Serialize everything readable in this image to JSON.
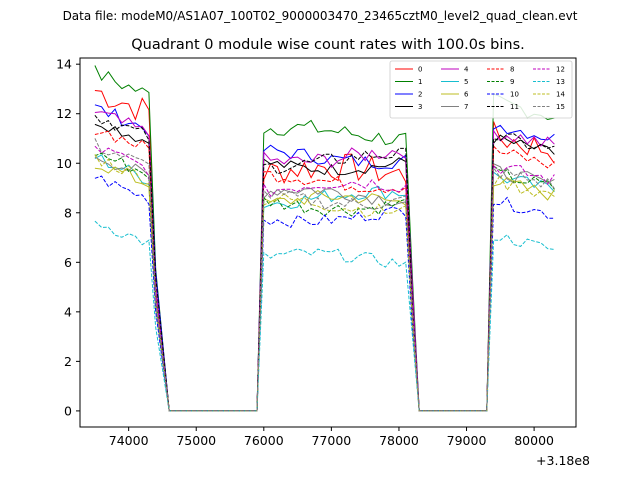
{
  "figure": {
    "suptitle": "Data file: modeM0/AS1A07_100T02_9000003470_23465cztM0_level2_quad_clean.evt"
  },
  "chart_data": {
    "type": "line",
    "title": "Quadrant 0 module wise count rates with 100.0s bins.",
    "xlabel": "",
    "ylabel": "",
    "x_offset_label": "+3.18e8",
    "xlim": [
      73280,
      80620
    ],
    "ylim": [
      -0.65,
      14.25
    ],
    "xticks": [
      74000,
      75000,
      76000,
      77000,
      78000,
      79000,
      80000
    ],
    "yticks": [
      0,
      2,
      4,
      6,
      8,
      10,
      12,
      14
    ],
    "legend_position": "top-right",
    "legend_columns": 4,
    "segments": [
      {
        "x_start": 73500,
        "x_end": 74300
      },
      {
        "x_start": 76000,
        "x_end": 78100
      },
      {
        "x_start": 79400,
        "x_end": 80300
      }
    ],
    "gaps": [
      {
        "x_start": 74600,
        "x_end": 75900,
        "value": 0
      },
      {
        "x_start": 78300,
        "x_end": 79300,
        "value": 0
      }
    ],
    "series": [
      {
        "name": "0",
        "color": "#ff0000",
        "dash": "solid",
        "levels": [
          12.5,
          9.6,
          10.8
        ],
        "noise": 0.6
      },
      {
        "name": "1",
        "color": "#008000",
        "dash": "solid",
        "levels": [
          13.2,
          11.2,
          12.2
        ],
        "noise": 0.35
      },
      {
        "name": "2",
        "color": "#0000ff",
        "dash": "solid",
        "levels": [
          11.8,
          10.3,
          11.3
        ],
        "noise": 0.3
      },
      {
        "name": "3",
        "color": "#000000",
        "dash": "solid",
        "levels": [
          11.3,
          10.0,
          10.7
        ],
        "noise": 0.25
      },
      {
        "name": "4",
        "color": "#bf00bf",
        "dash": "solid",
        "levels": [
          11.6,
          10.3,
          11.0
        ],
        "noise": 0.35
      },
      {
        "name": "5",
        "color": "#17becf",
        "dash": "solid",
        "levels": [
          9.8,
          8.6,
          9.2
        ],
        "noise": 0.3
      },
      {
        "name": "6",
        "color": "#bcbd22",
        "dash": "solid",
        "levels": [
          9.6,
          8.4,
          9.0
        ],
        "noise": 0.3
      },
      {
        "name": "7",
        "color": "#808080",
        "dash": "solid",
        "levels": [
          9.9,
          8.7,
          9.4
        ],
        "noise": 0.3
      },
      {
        "name": "8",
        "color": "#ff0000",
        "dash": "dashed",
        "levels": [
          11.0,
          9.3,
          10.2
        ],
        "noise": 0.3
      },
      {
        "name": "9",
        "color": "#008000",
        "dash": "dashed",
        "levels": [
          10.0,
          8.4,
          9.3
        ],
        "noise": 0.3
      },
      {
        "name": "10",
        "color": "#0000ff",
        "dash": "dashed",
        "levels": [
          9.0,
          7.9,
          8.2
        ],
        "noise": 0.25
      },
      {
        "name": "11",
        "color": "#000000",
        "dash": "dashed",
        "levels": [
          11.5,
          10.1,
          10.8
        ],
        "noise": 0.3
      },
      {
        "name": "12",
        "color": "#bf00bf",
        "dash": "dashed",
        "levels": [
          10.2,
          9.0,
          9.6
        ],
        "noise": 0.3
      },
      {
        "name": "13",
        "color": "#17becf",
        "dash": "dashed",
        "levels": [
          7.2,
          6.1,
          6.8
        ],
        "noise": 0.25
      },
      {
        "name": "14",
        "color": "#bcbd22",
        "dash": "dashed",
        "levels": [
          9.8,
          8.3,
          9.0
        ],
        "noise": 0.3
      },
      {
        "name": "15",
        "color": "#808080",
        "dash": "dashed",
        "levels": [
          10.3,
          8.6,
          9.4
        ],
        "noise": 0.3
      }
    ]
  }
}
